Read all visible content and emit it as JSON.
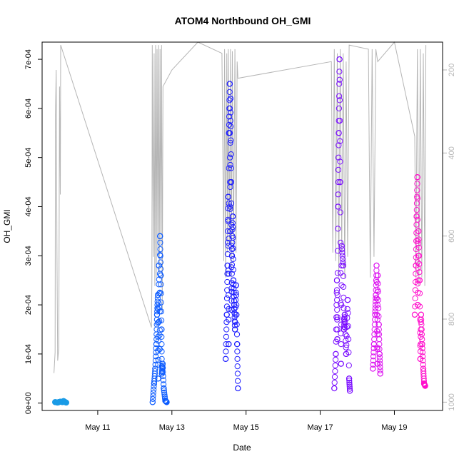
{
  "chart_data": {
    "type": "scatter",
    "title": "ATOM4 Northbound OH_GMI",
    "xlabel": "Date",
    "ylabel": "OH_GMI",
    "x_ticks": [
      "May 11",
      "May 13",
      "May 15",
      "May 17",
      "May 19"
    ],
    "x_tick_days": [
      11,
      13,
      15,
      17,
      19
    ],
    "xlim_days": [
      9.5,
      20.3
    ],
    "y_ticks": [
      "0e+00",
      "1e-04",
      "2e-04",
      "3e-04",
      "4e-04",
      "5e-04",
      "6e-04",
      "7e-04"
    ],
    "y_tick_values": [
      0,
      0.0001,
      0.0002,
      0.0003,
      0.0004,
      0.0005,
      0.0006,
      0.0007
    ],
    "ylim": [
      -1.5e-05,
      0.000735
    ],
    "right_axis": {
      "series": "pressure",
      "ticks": [
        "200",
        "400",
        "600",
        "800",
        "1000"
      ],
      "tick_values": [
        200,
        400,
        600,
        800,
        1000
      ],
      "inverted": true,
      "ylim": [
        1020,
        133
      ],
      "color": "#b5b5b5"
    },
    "grid": false,
    "series": [
      {
        "color": "#1a9be6",
        "points": [
          [
            9.85,
            2e-06
          ],
          [
            9.92,
            1e-06
          ],
          [
            10.0,
            3e-06
          ],
          [
            10.05,
            2e-06
          ],
          [
            10.1,
            3e-06
          ],
          [
            10.15,
            1e-06
          ],
          [
            9.95,
            2e-06
          ],
          [
            10.08,
            4e-06
          ]
        ]
      },
      {
        "color": "#0d5cff",
        "points": [
          [
            12.48,
            2e-06
          ],
          [
            12.52,
            4e-05
          ],
          [
            12.55,
            7e-05
          ],
          [
            12.58,
            0.00012
          ],
          [
            12.6,
            0.00018
          ],
          [
            12.62,
            0.00022
          ],
          [
            12.65,
            0.00028
          ],
          [
            12.68,
            0.00034
          ],
          [
            12.7,
            0.00026
          ],
          [
            12.72,
            0.00015
          ],
          [
            12.75,
            8e-05
          ],
          [
            12.78,
            3e-05
          ],
          [
            12.82,
            5e-06
          ],
          [
            12.86,
            2e-06
          ],
          [
            12.63,
            5e-05
          ],
          [
            12.67,
            0.00011
          ],
          [
            12.73,
            6e-05
          ]
        ]
      },
      {
        "color": "#1e1eff",
        "points": [
          [
            14.45,
            9e-05
          ],
          [
            14.48,
            0.00018
          ],
          [
            14.5,
            0.00028
          ],
          [
            14.52,
            0.00042
          ],
          [
            14.54,
            0.00055
          ],
          [
            14.56,
            0.00065
          ],
          [
            14.58,
            0.00062
          ],
          [
            14.6,
            0.00045
          ],
          [
            14.62,
            0.0003
          ],
          [
            14.64,
            0.00038
          ],
          [
            14.66,
            0.00025
          ],
          [
            14.68,
            0.0002
          ],
          [
            14.7,
            0.00015
          ],
          [
            14.73,
            0.00024
          ],
          [
            14.76,
            0.00012
          ],
          [
            14.78,
            3e-05
          ],
          [
            14.53,
            0.00012
          ],
          [
            14.57,
            0.00035
          ],
          [
            14.61,
            0.00019
          ]
        ]
      },
      {
        "color": "#7a0dff",
        "points": [
          [
            17.38,
            3e-05
          ],
          [
            17.42,
            0.0001
          ],
          [
            17.45,
            0.00025
          ],
          [
            17.48,
            0.0004
          ],
          [
            17.5,
            0.00055
          ],
          [
            17.52,
            0.0007
          ],
          [
            17.54,
            0.00045
          ],
          [
            17.58,
            0.00032
          ],
          [
            17.62,
            0.00028
          ],
          [
            17.66,
            0.00018
          ],
          [
            17.7,
            0.0001
          ],
          [
            17.74,
            0.00021
          ],
          [
            17.78,
            5e-05
          ],
          [
            17.8,
            2.5e-05
          ],
          [
            17.46,
            0.00013
          ],
          [
            17.56,
            8e-05
          ],
          [
            17.64,
            0.00015
          ]
        ]
      },
      {
        "color": "#dc11f0",
        "points": [
          [
            18.42,
            7e-05
          ],
          [
            18.45,
            0.00012
          ],
          [
            18.48,
            0.00018
          ],
          [
            18.5,
            0.00022
          ],
          [
            18.52,
            0.00028
          ],
          [
            18.55,
            0.00026
          ],
          [
            18.58,
            0.00016
          ],
          [
            18.6,
            0.0001
          ],
          [
            18.62,
            6e-05
          ],
          [
            18.54,
            8e-05
          ]
        ]
      },
      {
        "color": "#ff11cc",
        "points": [
          [
            19.55,
            0.00018
          ],
          [
            19.58,
            0.00028
          ],
          [
            19.6,
            0.00038
          ],
          [
            19.62,
            0.00046
          ],
          [
            19.65,
            0.00035
          ],
          [
            19.68,
            0.00025
          ],
          [
            19.72,
            0.00018
          ],
          [
            19.75,
            0.00012
          ],
          [
            19.78,
            7e-05
          ],
          [
            19.8,
            4e-05
          ],
          [
            19.83,
            3.5e-05
          ],
          [
            19.7,
            9e-05
          ],
          [
            19.63,
            0.0002
          ]
        ]
      }
    ],
    "pressure_trace": [
      [
        9.82,
        930
      ],
      [
        9.85,
        880
      ],
      [
        9.86,
        310
      ],
      [
        9.88,
        200
      ],
      [
        9.9,
        640
      ],
      [
        9.92,
        900
      ],
      [
        9.95,
        870
      ],
      [
        9.97,
        240
      ],
      [
        9.99,
        500
      ],
      [
        10.0,
        140
      ],
      [
        12.45,
        820
      ],
      [
        12.46,
        700
      ],
      [
        12.47,
        140
      ],
      [
        12.5,
        650
      ],
      [
        12.52,
        160
      ],
      [
        12.54,
        720
      ],
      [
        12.56,
        140
      ],
      [
        12.58,
        700
      ],
      [
        12.6,
        150
      ],
      [
        12.62,
        650
      ],
      [
        12.64,
        140
      ],
      [
        12.66,
        690
      ],
      [
        12.68,
        150
      ],
      [
        12.7,
        620
      ],
      [
        12.72,
        140
      ],
      [
        12.74,
        780
      ],
      [
        12.76,
        240
      ],
      [
        13.0,
        200
      ],
      [
        13.7,
        133
      ],
      [
        14.35,
        160
      ],
      [
        14.4,
        660
      ],
      [
        14.42,
        150
      ],
      [
        14.45,
        700
      ],
      [
        14.48,
        160
      ],
      [
        14.5,
        640
      ],
      [
        14.52,
        150
      ],
      [
        14.55,
        620
      ],
      [
        14.58,
        150
      ],
      [
        14.6,
        700
      ],
      [
        14.63,
        155
      ],
      [
        14.66,
        660
      ],
      [
        14.7,
        150
      ],
      [
        14.73,
        640
      ],
      [
        14.76,
        180
      ],
      [
        14.78,
        220
      ],
      [
        17.3,
        180
      ],
      [
        17.34,
        640
      ],
      [
        17.38,
        150
      ],
      [
        17.42,
        660
      ],
      [
        17.46,
        160
      ],
      [
        17.5,
        700
      ],
      [
        17.54,
        150
      ],
      [
        17.58,
        640
      ],
      [
        17.62,
        160
      ],
      [
        17.66,
        700
      ],
      [
        17.7,
        180
      ],
      [
        17.74,
        650
      ],
      [
        17.78,
        140
      ],
      [
        18.3,
        150
      ],
      [
        18.35,
        700
      ],
      [
        18.4,
        150
      ],
      [
        18.45,
        650
      ],
      [
        18.5,
        150
      ],
      [
        18.55,
        180
      ],
      [
        19.0,
        133
      ],
      [
        19.55,
        360
      ],
      [
        19.58,
        700
      ],
      [
        19.62,
        150
      ],
      [
        19.66,
        720
      ],
      [
        19.7,
        150
      ],
      [
        19.74,
        700
      ],
      [
        19.78,
        160
      ],
      [
        19.82,
        720
      ],
      [
        19.85,
        140
      ]
    ]
  }
}
